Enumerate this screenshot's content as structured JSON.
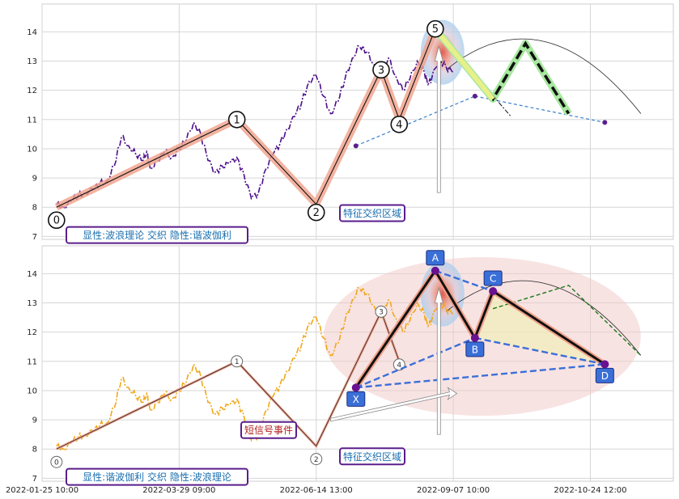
{
  "chart_data": [
    {
      "type": "line",
      "title": "",
      "xlabel": "",
      "ylabel": "",
      "ylim": [
        6.9,
        14.95
      ],
      "yticks": [
        7,
        8,
        9,
        10,
        11,
        12,
        13,
        14
      ],
      "grid": true,
      "series": [
        {
          "name": "",
          "style": "dashdot",
          "color": "#4b0f8a",
          "x": [
            0,
            2,
            4,
            6,
            8,
            10,
            12,
            14,
            16,
            18,
            20,
            22,
            24,
            25,
            26,
            28,
            30,
            32,
            34,
            36,
            38,
            40,
            42,
            44,
            46,
            48,
            50,
            52,
            54,
            56,
            58,
            60,
            62,
            64,
            66,
            68,
            70,
            72,
            74,
            76,
            78,
            80,
            82,
            84,
            86,
            88,
            90,
            92,
            94,
            96,
            98,
            100,
            102,
            103,
            104,
            106,
            108,
            110
          ],
          "y": [
            8.1,
            8.0,
            8.2,
            8.4,
            8.5,
            8.6,
            8.8,
            8.9,
            9.4,
            10.4,
            10.1,
            9.8,
            9.6,
            9.9,
            9.3,
            9.6,
            9.9,
            9.7,
            10.0,
            10.3,
            10.9,
            10.5,
            9.6,
            9.2,
            9.4,
            9.5,
            9.7,
            9.1,
            8.3,
            8.5,
            9.3,
            9.8,
            10.2,
            10.7,
            11.1,
            11.6,
            12.3,
            12.5,
            11.8,
            11.2,
            11.6,
            12.4,
            13.1,
            13.5,
            13.3,
            12.9,
            12.5,
            13.1,
            12.5,
            12.0,
            12.4,
            13.0,
            12.6,
            12.2,
            12.4,
            13.1,
            12.8,
            12.6
          ]
        }
      ],
      "elliott_wave": {
        "labels": [
          "0",
          "1",
          "2",
          "3",
          "4",
          "5"
        ],
        "x": [
          0,
          50,
          72,
          90,
          95,
          105
        ],
        "y": [
          8.0,
          11.0,
          8.1,
          12.7,
          11.0,
          14.1
        ]
      },
      "projection": {
        "x": [
          105,
          121,
          130,
          142
        ],
        "y": [
          14.1,
          11.7,
          13.6,
          11.2
        ]
      },
      "harmonic_points": {
        "x": [
          83,
          105,
          116,
          152
        ],
        "y": [
          10.1,
          14.1,
          11.8,
          10.9
        ]
      },
      "annotation_box": "特征交织区域",
      "legend_text": "显性:波浪理论 交织 隐性:谐波伽利"
    },
    {
      "type": "line",
      "title": "",
      "xlabel": "",
      "ylabel": "",
      "ylim": [
        6.9,
        14.95
      ],
      "yticks": [
        7,
        8,
        9,
        10,
        11,
        12,
        13,
        14
      ],
      "xticks": [
        "2022-01-25 10:00",
        "2022-03-29 09:00",
        "2022-06-14 13:00",
        "2022-09-07 10:00",
        "2022-10-24 12:00"
      ],
      "grid": true,
      "series": [
        {
          "name": "",
          "style": "dashdot",
          "color": "#f0a818",
          "x": [
            0,
            2,
            4,
            6,
            8,
            10,
            12,
            14,
            16,
            18,
            20,
            22,
            24,
            25,
            26,
            28,
            30,
            32,
            34,
            36,
            38,
            40,
            42,
            44,
            46,
            48,
            50,
            52,
            54,
            56,
            58,
            60,
            62,
            64,
            66,
            68,
            70,
            72,
            74,
            76,
            78,
            80,
            82,
            84,
            86,
            88,
            90,
            92,
            94,
            96,
            98,
            100,
            102,
            103,
            104,
            106,
            108,
            110
          ],
          "y": [
            8.1,
            8.0,
            8.2,
            8.4,
            8.5,
            8.6,
            8.8,
            8.9,
            9.4,
            10.4,
            10.1,
            9.8,
            9.6,
            9.9,
            9.3,
            9.6,
            9.9,
            9.7,
            10.0,
            10.3,
            10.9,
            10.5,
            9.6,
            9.2,
            9.4,
            9.5,
            9.7,
            9.1,
            8.3,
            8.5,
            9.3,
            9.8,
            10.2,
            10.7,
            11.1,
            11.6,
            12.3,
            12.5,
            11.8,
            11.2,
            11.6,
            12.4,
            13.1,
            13.5,
            13.3,
            12.9,
            12.5,
            13.1,
            12.5,
            12.0,
            12.4,
            13.0,
            12.6,
            12.2,
            12.4,
            13.1,
            12.8,
            12.6
          ]
        }
      ],
      "elliott_wave": {
        "labels": [
          "0",
          "1",
          "2",
          "3",
          "4"
        ],
        "x": [
          0,
          50,
          72,
          90,
          95
        ],
        "y": [
          8.0,
          11.0,
          8.1,
          12.7,
          11.0
        ]
      },
      "harmonic": {
        "labels": [
          "X",
          "A",
          "B",
          "C",
          "D"
        ],
        "x": [
          83,
          105,
          116,
          121,
          152
        ],
        "y": [
          10.1,
          14.1,
          11.8,
          13.4,
          10.9
        ]
      },
      "projection": {
        "x": [
          121,
          142,
          162
        ],
        "y": [
          12.8,
          13.6,
          11.2
        ]
      },
      "annotation_box": "特征交织区域",
      "event_box": "短信号事件",
      "legend_text": "显性:谐波伽利 交织 隐性:波浪理论"
    }
  ]
}
